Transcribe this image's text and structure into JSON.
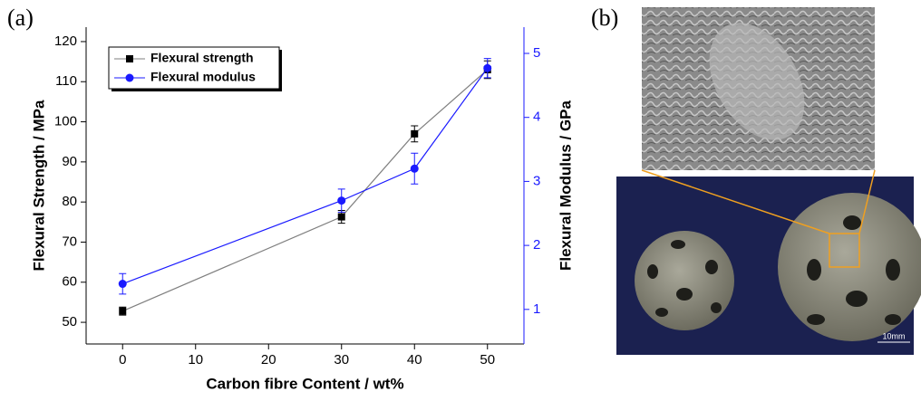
{
  "chart_data": {
    "type": "line",
    "panel_label": "(a)",
    "x_label": "Carbon fibre Content / wt%",
    "y_label": "Flexural Strength / MPa",
    "y2_label": "Flexural Modulus / GPa",
    "x": [
      0,
      30,
      40,
      50
    ],
    "series": [
      {
        "name": "Flexural strength",
        "color": "#000000",
        "marker": "square",
        "values": [
          52.8,
          76.3,
          97,
          113
        ],
        "errors": [
          1,
          1.6,
          2,
          2.2
        ]
      },
      {
        "name": "Flexural modulus",
        "color": "#1a1aff",
        "marker": "circle",
        "axis": "y2",
        "values": [
          1.4,
          2.7,
          3.2,
          4.77
        ],
        "errors": [
          0.16,
          0.18,
          0.24,
          0.15
        ]
      }
    ],
    "xlim": [
      -5,
      55
    ],
    "xticks": [
      0,
      10,
      20,
      30,
      40,
      50
    ],
    "ylim": [
      44.6,
      123.6
    ],
    "yticks": [
      50,
      60,
      70,
      80,
      90,
      100,
      110,
      120
    ],
    "y2lim": [
      0.46,
      5.41
    ],
    "y2ticks": [
      1,
      2,
      3,
      4,
      5
    ],
    "legend": "upper-left"
  },
  "photo": {
    "panel_label": "(b)",
    "scale_bar": "10mm"
  }
}
